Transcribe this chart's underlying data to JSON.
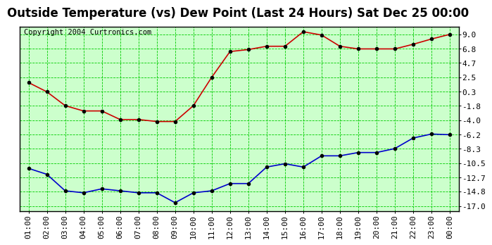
{
  "title": "Outside Temperature (vs) Dew Point (Last 24 Hours) Sat Dec 25 00:00",
  "copyright": "Copyright 2004 Curtronics.com",
  "x_labels": [
    "01:00",
    "02:00",
    "03:00",
    "04:00",
    "05:00",
    "06:00",
    "07:00",
    "08:00",
    "09:00",
    "10:00",
    "11:00",
    "12:00",
    "13:00",
    "14:00",
    "15:00",
    "16:00",
    "17:00",
    "18:00",
    "19:00",
    "20:00",
    "21:00",
    "22:00",
    "23:00",
    "00:00"
  ],
  "temp_data": [
    1.7,
    0.3,
    -1.8,
    -2.6,
    -2.6,
    -3.9,
    -3.9,
    -4.2,
    -4.2,
    -1.8,
    2.5,
    6.4,
    6.7,
    7.2,
    7.2,
    9.4,
    8.9,
    7.2,
    6.8,
    6.8,
    6.8,
    7.5,
    8.3,
    9.0
  ],
  "dew_data": [
    -11.3,
    -12.2,
    -14.7,
    -15.0,
    -14.4,
    -14.7,
    -15.0,
    -15.0,
    -16.5,
    -15.0,
    -14.7,
    -13.6,
    -13.6,
    -11.1,
    -10.6,
    -11.1,
    -9.4,
    -9.4,
    -8.9,
    -8.9,
    -8.3,
    -6.7,
    -6.1,
    -6.2
  ],
  "temp_color": "#cc0000",
  "dew_color": "#0000cc",
  "marker_color": "#000000",
  "plot_bg_color": "#ccffcc",
  "grid_color": "#00cc00",
  "fig_bg_color": "#ffffff",
  "yticks": [
    9.0,
    6.8,
    4.7,
    2.5,
    0.3,
    -1.8,
    -4.0,
    -6.2,
    -8.3,
    -10.5,
    -12.7,
    -14.8,
    -17.0
  ],
  "ylim": [
    -17.8,
    10.2
  ],
  "title_fontsize": 12,
  "axis_fontsize": 8,
  "copyright_fontsize": 7.5
}
